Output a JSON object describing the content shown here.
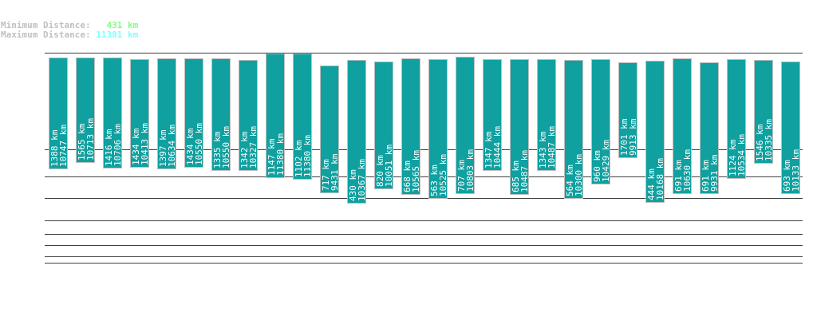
{
  "header": {
    "min_label": "Minimum Distance:",
    "min_value": "431 km",
    "max_label": "Maximum Distance:",
    "max_value": "11381 km",
    "min_color": "#80ff80",
    "max_color": "#80ffff"
  },
  "chart_data": {
    "type": "bar",
    "bar_color": "#10a0a0",
    "unit": "km",
    "series": [
      {
        "name": "min",
        "values": [
          1388,
          1565,
          1416,
          1434,
          1397,
          1434,
          1335,
          1342,
          1147,
          1102,
          717,
          430,
          820,
          668,
          563,
          707,
          1347,
          685,
          1343,
          564,
          960,
          1701,
          444,
          691,
          691,
          1124,
          1546,
          693
        ]
      },
      {
        "name": "max",
        "values": [
          10747,
          10713,
          10706,
          10413,
          10634,
          10550,
          10550,
          10327,
          11380,
          11380,
          9431,
          10367,
          10051,
          10565,
          10525,
          10803,
          10444,
          10487,
          10487,
          10300,
          10429,
          9913,
          10168,
          10630,
          9931,
          10534,
          10335,
          10133
        ]
      }
    ]
  }
}
